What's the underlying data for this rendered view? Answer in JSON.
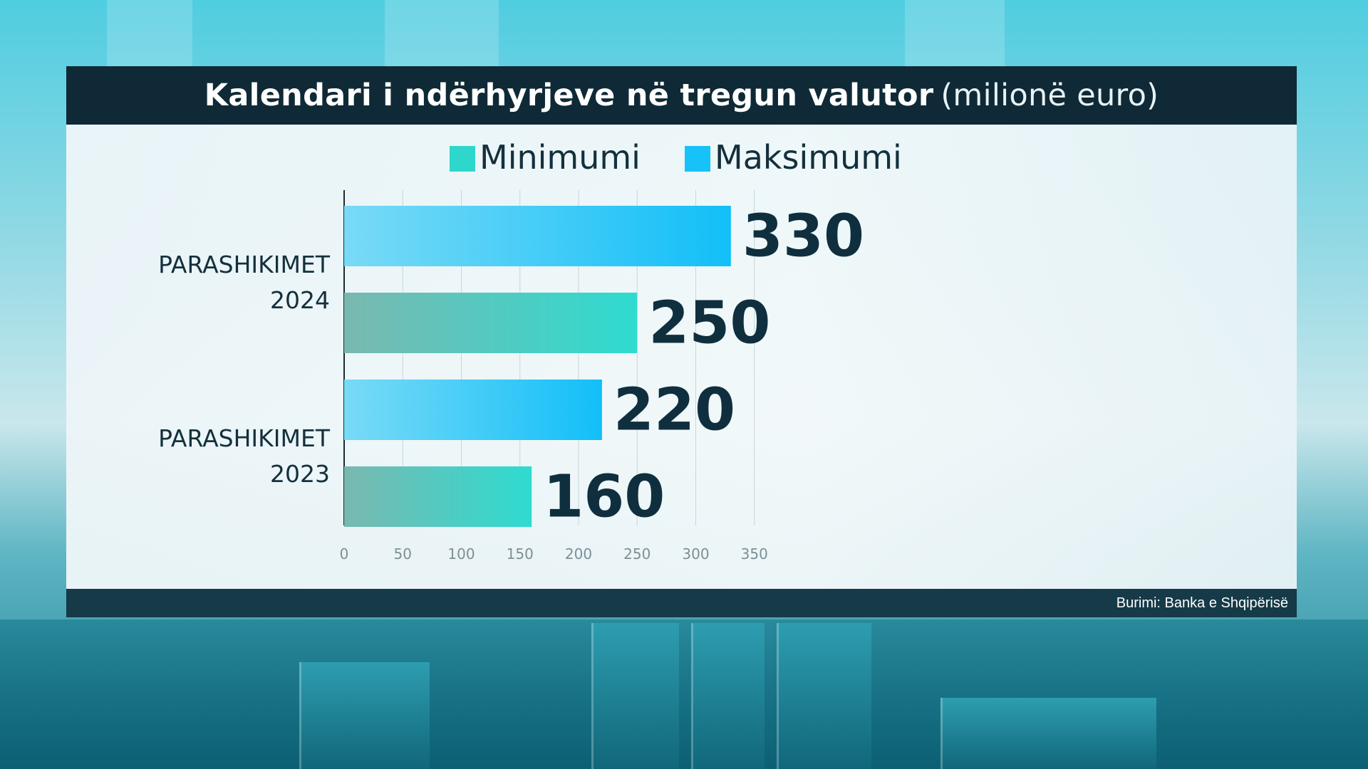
{
  "title": {
    "bold": "Kalendari i ndërhyrjeve në tregun valutor",
    "light": "(milionë euro)"
  },
  "source": "Burimi: Banka e Shqipërisë",
  "colors": {
    "minimum": "#2ed6cc",
    "maximum": "#16c2f8",
    "value_text": "#0f2f3f",
    "title_bg": "#0f2a36"
  },
  "chart_data": {
    "type": "bar",
    "orientation": "horizontal",
    "title": "Kalendari i ndërhyrjeve në tregun valutor (milionë euro)",
    "categories": [
      {
        "line1": "PARASHIKIMET",
        "line2": "2024"
      },
      {
        "line1": "PARASHIKIMET",
        "line2": "2023"
      }
    ],
    "series": [
      {
        "name": "Maksimumi",
        "values": [
          330,
          220
        ]
      },
      {
        "name": "Minimumi",
        "values": [
          250,
          160
        ]
      }
    ],
    "legend": [
      "Minimumi",
      "Maksimumi"
    ],
    "legend_position": "top",
    "xlim": [
      0,
      370
    ],
    "xticks": [
      0,
      50,
      100,
      150,
      200,
      250,
      300,
      350
    ],
    "grid": true
  }
}
